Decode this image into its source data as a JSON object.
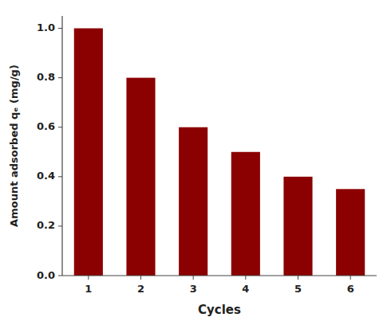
{
  "chart_data": {
    "type": "bar",
    "categories": [
      "1",
      "2",
      "3",
      "4",
      "5",
      "6"
    ],
    "values": [
      1.0,
      0.8,
      0.6,
      0.5,
      0.4,
      0.35
    ],
    "color": "#8B0000",
    "xlabel": "Cycles",
    "ylabel": "Amount adsorbed qₑ (mg/g)",
    "ylim": [
      0.0,
      1.05
    ],
    "yticks": [
      {
        "value": 0.0,
        "label": "0.0"
      },
      0.2,
      0.4,
      0.6,
      0.8,
      {
        "value": 1.0,
        "label": "1.0"
      }
    ],
    "grid": false
  }
}
